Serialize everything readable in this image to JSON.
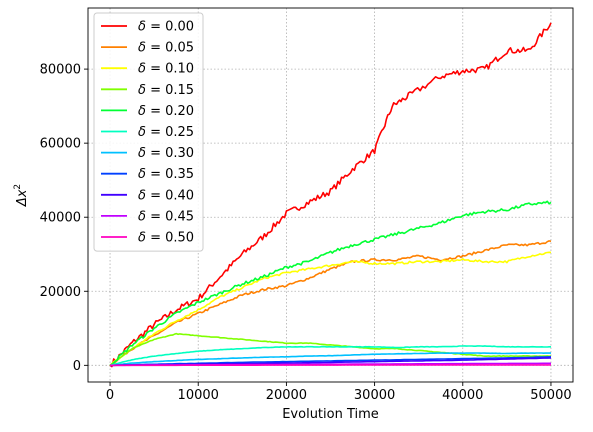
{
  "chart_data": {
    "type": "line",
    "title": "",
    "xlabel": "Evolution Time",
    "ylabel_base": "Δx",
    "ylabel_sup": "2",
    "xlim": [
      -2500,
      52500
    ],
    "ylim": [
      -4500,
      96500
    ],
    "x_ticks": [
      0,
      10000,
      20000,
      30000,
      40000,
      50000
    ],
    "y_ticks": [
      0,
      20000,
      40000,
      60000,
      80000
    ],
    "grid": true,
    "legend_position": "top-left",
    "legend_prefix": "δ = ",
    "series": [
      {
        "name": "0.00",
        "color": "#ff0000",
        "x": [
          0,
          2500,
          5000,
          7500,
          10000,
          12500,
          15000,
          17500,
          20000,
          22500,
          25000,
          27500,
          30000,
          32000,
          34000,
          37500,
          40000,
          42500,
          45000,
          47500,
          50000
        ],
        "y": [
          0,
          6000,
          11000,
          15000,
          18000,
          24000,
          30000,
          35000,
          41000,
          44000,
          47000,
          53000,
          58000,
          70000,
          73000,
          78000,
          79500,
          80000,
          85000,
          85000,
          92500
        ]
      },
      {
        "name": "0.05",
        "color": "#ff8000",
        "x": [
          0,
          2500,
          5000,
          7500,
          10000,
          12500,
          15000,
          17500,
          20000,
          22500,
          25000,
          27500,
          30000,
          32500,
          35000,
          37500,
          40000,
          42500,
          45000,
          47500,
          50000
        ],
        "y": [
          0,
          4500,
          8000,
          11500,
          14000,
          16500,
          19000,
          20500,
          21500,
          23500,
          26000,
          28000,
          28500,
          28500,
          29500,
          28500,
          29500,
          31000,
          32500,
          32500,
          33500
        ]
      },
      {
        "name": "0.10",
        "color": "#ffff00",
        "x": [
          0,
          2500,
          5000,
          7500,
          10000,
          12500,
          15000,
          17500,
          20000,
          22500,
          25000,
          27500,
          30000,
          32500,
          35000,
          37500,
          40000,
          42500,
          45000,
          47500,
          50000
        ],
        "y": [
          0,
          4500,
          8500,
          12000,
          15000,
          18500,
          21000,
          23500,
          25000,
          26000,
          27000,
          28000,
          27500,
          27500,
          28000,
          28000,
          28500,
          28000,
          28000,
          29500,
          30500
        ]
      },
      {
        "name": "0.15",
        "color": "#80ff00",
        "x": [
          0,
          2500,
          5000,
          7500,
          10000,
          12500,
          15000,
          17500,
          20000,
          22500,
          25000,
          27500,
          30000,
          32500,
          35000,
          37500,
          40000,
          42500,
          45000,
          47500,
          50000
        ],
        "y": [
          0,
          4500,
          7000,
          8500,
          8000,
          7500,
          7000,
          6500,
          6000,
          6000,
          5500,
          5000,
          4500,
          4500,
          4000,
          3500,
          3000,
          2500,
          2500,
          2500,
          2500
        ]
      },
      {
        "name": "0.20",
        "color": "#00ff33",
        "x": [
          0,
          2500,
          5000,
          7500,
          10000,
          12500,
          15000,
          17500,
          20000,
          22500,
          25000,
          27500,
          30000,
          32500,
          35000,
          37500,
          40000,
          42500,
          45000,
          47500,
          50000
        ],
        "y": [
          0,
          5500,
          10000,
          14000,
          17000,
          19500,
          22000,
          24000,
          26500,
          28000,
          30500,
          32500,
          34000,
          35500,
          37000,
          38500,
          40500,
          41500,
          42000,
          43500,
          44000
        ]
      },
      {
        "name": "0.25",
        "color": "#00ffc0",
        "x": [
          0,
          2500,
          5000,
          7500,
          10000,
          12500,
          15000,
          17500,
          20000,
          22500,
          25000,
          27500,
          30000,
          32500,
          35000,
          37500,
          40000,
          42500,
          45000,
          47500,
          50000
        ],
        "y": [
          0,
          1500,
          2500,
          3200,
          3800,
          4200,
          4500,
          4800,
          5000,
          5000,
          5000,
          5000,
          5000,
          4800,
          5000,
          5000,
          5200,
          5200,
          5000,
          5000,
          5000
        ]
      },
      {
        "name": "0.30",
        "color": "#00c0ff",
        "x": [
          0,
          2500,
          5000,
          7500,
          10000,
          12500,
          15000,
          17500,
          20000,
          22500,
          25000,
          27500,
          30000,
          32500,
          35000,
          37500,
          40000,
          42500,
          45000,
          47500,
          50000
        ],
        "y": [
          0,
          600,
          1000,
          1300,
          1600,
          1800,
          2000,
          2200,
          2300,
          2500,
          2600,
          2800,
          3000,
          3100,
          3200,
          3300,
          3300,
          3300,
          3200,
          3300,
          3300
        ]
      },
      {
        "name": "0.35",
        "color": "#0040ff",
        "x": [
          0,
          5000,
          10000,
          15000,
          20000,
          25000,
          30000,
          35000,
          40000,
          45000,
          50000
        ],
        "y": [
          0,
          300,
          550,
          800,
          1000,
          1200,
          1400,
          1600,
          1800,
          2000,
          2300
        ]
      },
      {
        "name": "0.40",
        "color": "#4000ff",
        "x": [
          0,
          5000,
          10000,
          15000,
          20000,
          25000,
          30000,
          35000,
          40000,
          45000,
          50000
        ],
        "y": [
          0,
          150,
          300,
          450,
          600,
          800,
          1000,
          1200,
          1400,
          1700,
          2000
        ]
      },
      {
        "name": "0.45",
        "color": "#c000ff",
        "x": [
          0,
          10000,
          20000,
          30000,
          40000,
          50000
        ],
        "y": [
          0,
          120,
          250,
          350,
          450,
          550
        ]
      },
      {
        "name": "0.50",
        "color": "#ff00c0",
        "x": [
          0,
          10000,
          20000,
          30000,
          40000,
          50000
        ],
        "y": [
          0,
          30,
          60,
          90,
          110,
          130
        ]
      }
    ]
  }
}
